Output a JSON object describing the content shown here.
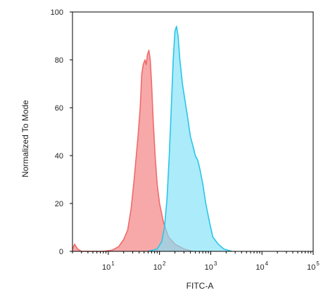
{
  "chart_data": {
    "type": "area",
    "title": "",
    "xlabel": "FITC-A",
    "ylabel": "Normalized To Mode",
    "xscale": "log",
    "xlim": [
      2,
      100000
    ],
    "ylim": [
      0,
      100
    ],
    "grid": false,
    "legend": "none",
    "x_ticks": [
      {
        "base": "10",
        "exp": "1",
        "value": 10
      },
      {
        "base": "10",
        "exp": "2",
        "value": 100
      },
      {
        "base": "10",
        "exp": "3",
        "value": 1000
      },
      {
        "base": "10",
        "exp": "4",
        "value": 10000
      },
      {
        "base": "10",
        "exp": "5",
        "value": 100000
      }
    ],
    "y_ticks": [
      "0",
      "20",
      "40",
      "60",
      "80",
      "100"
    ],
    "series": [
      {
        "color": "#f06a6a",
        "fill": "#f6a0a0",
        "points": [
          [
            2,
            1
          ],
          [
            2.2,
            3
          ],
          [
            2.5,
            1
          ],
          [
            3,
            0
          ],
          [
            8,
            0
          ],
          [
            12,
            0.5
          ],
          [
            16,
            2
          ],
          [
            20,
            5
          ],
          [
            24,
            9
          ],
          [
            28,
            18
          ],
          [
            32,
            30
          ],
          [
            38,
            48
          ],
          [
            42,
            60
          ],
          [
            45,
            74
          ],
          [
            48,
            78
          ],
          [
            52,
            80
          ],
          [
            55,
            78
          ],
          [
            58,
            82
          ],
          [
            62,
            84
          ],
          [
            66,
            80
          ],
          [
            70,
            70
          ],
          [
            75,
            55
          ],
          [
            82,
            40
          ],
          [
            90,
            28
          ],
          [
            100,
            20
          ],
          [
            120,
            12
          ],
          [
            150,
            6
          ],
          [
            200,
            3
          ],
          [
            300,
            1
          ],
          [
            450,
            0
          ]
        ]
      },
      {
        "color": "#28c6e8",
        "fill": "#7fe0f8",
        "points": [
          [
            60,
            0
          ],
          [
            90,
            1
          ],
          [
            110,
            4
          ],
          [
            125,
            10
          ],
          [
            140,
            22
          ],
          [
            155,
            40
          ],
          [
            170,
            60
          ],
          [
            185,
            80
          ],
          [
            200,
            92
          ],
          [
            215,
            94
          ],
          [
            230,
            90
          ],
          [
            250,
            80
          ],
          [
            280,
            70
          ],
          [
            320,
            62
          ],
          [
            360,
            55
          ],
          [
            400,
            48
          ],
          [
            450,
            44
          ],
          [
            500,
            40
          ],
          [
            560,
            38
          ],
          [
            620,
            34
          ],
          [
            700,
            28
          ],
          [
            800,
            20
          ],
          [
            950,
            12
          ],
          [
            1100,
            6
          ],
          [
            1400,
            3
          ],
          [
            1800,
            1
          ],
          [
            2600,
            0
          ]
        ]
      }
    ]
  }
}
